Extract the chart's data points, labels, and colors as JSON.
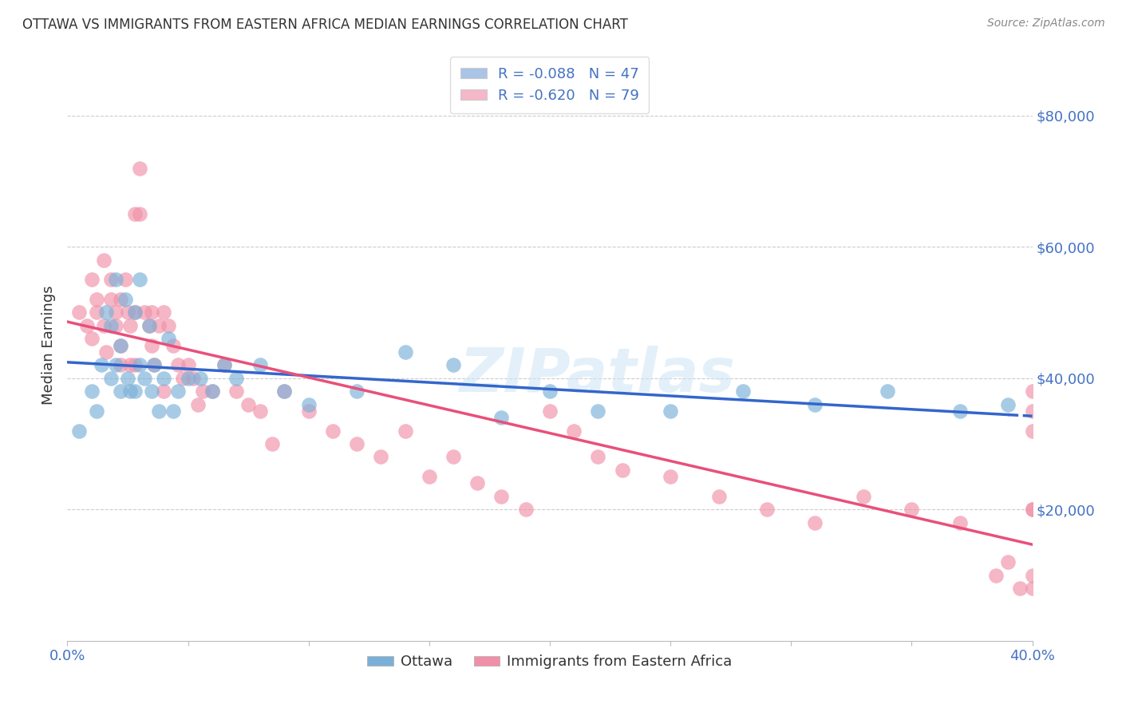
{
  "title": "OTTAWA VS IMMIGRANTS FROM EASTERN AFRICA MEDIAN EARNINGS CORRELATION CHART",
  "source": "Source: ZipAtlas.com",
  "ylabel": "Median Earnings",
  "right_ytick_labels": [
    "$80,000",
    "$60,000",
    "$40,000",
    "$20,000"
  ],
  "right_ytick_values": [
    80000,
    60000,
    40000,
    20000
  ],
  "legend_entries": [
    {
      "label": "R = -0.088   N = 47",
      "color": "#aac4e8"
    },
    {
      "label": "R = -0.620   N = 79",
      "color": "#f4b8c8"
    }
  ],
  "legend_labels_bottom": [
    "Ottawa",
    "Immigrants from Eastern Africa"
  ],
  "ottawa_color": "#7ab0d8",
  "immigrant_color": "#f090a8",
  "ottawa_line_color": "#3366cc",
  "immigrant_line_color": "#e8507a",
  "watermark": "ZIPatlas",
  "xlim": [
    0.0,
    0.4
  ],
  "ylim": [
    0,
    90000
  ],
  "ottawa_R": -0.088,
  "ottawa_N": 47,
  "immigrant_R": -0.62,
  "immigrant_N": 79,
  "ottawa_scatter_x": [
    0.005,
    0.01,
    0.012,
    0.014,
    0.016,
    0.018,
    0.018,
    0.02,
    0.02,
    0.022,
    0.022,
    0.024,
    0.025,
    0.026,
    0.028,
    0.028,
    0.03,
    0.03,
    0.032,
    0.034,
    0.035,
    0.036,
    0.038,
    0.04,
    0.042,
    0.044,
    0.046,
    0.05,
    0.055,
    0.06,
    0.065,
    0.07,
    0.08,
    0.09,
    0.1,
    0.12,
    0.14,
    0.16,
    0.18,
    0.2,
    0.22,
    0.25,
    0.28,
    0.31,
    0.34,
    0.37,
    0.39
  ],
  "ottawa_scatter_y": [
    32000,
    38000,
    35000,
    42000,
    50000,
    48000,
    40000,
    55000,
    42000,
    38000,
    45000,
    52000,
    40000,
    38000,
    50000,
    38000,
    55000,
    42000,
    40000,
    48000,
    38000,
    42000,
    35000,
    40000,
    46000,
    35000,
    38000,
    40000,
    40000,
    38000,
    42000,
    40000,
    42000,
    38000,
    36000,
    38000,
    44000,
    42000,
    34000,
    38000,
    35000,
    35000,
    38000,
    36000,
    38000,
    35000,
    36000
  ],
  "immigrant_scatter_x": [
    0.005,
    0.008,
    0.01,
    0.01,
    0.012,
    0.012,
    0.015,
    0.015,
    0.016,
    0.018,
    0.018,
    0.02,
    0.02,
    0.022,
    0.022,
    0.022,
    0.024,
    0.025,
    0.026,
    0.026,
    0.028,
    0.028,
    0.028,
    0.03,
    0.03,
    0.032,
    0.034,
    0.035,
    0.035,
    0.036,
    0.038,
    0.04,
    0.04,
    0.042,
    0.044,
    0.046,
    0.048,
    0.05,
    0.052,
    0.054,
    0.056,
    0.06,
    0.065,
    0.07,
    0.075,
    0.08,
    0.085,
    0.09,
    0.1,
    0.11,
    0.12,
    0.13,
    0.14,
    0.15,
    0.16,
    0.17,
    0.18,
    0.19,
    0.2,
    0.21,
    0.22,
    0.23,
    0.25,
    0.27,
    0.29,
    0.31,
    0.33,
    0.35,
    0.37,
    0.385,
    0.39,
    0.395,
    0.4,
    0.4,
    0.4,
    0.4,
    0.4,
    0.4,
    0.4
  ],
  "immigrant_scatter_y": [
    50000,
    48000,
    55000,
    46000,
    52000,
    50000,
    58000,
    48000,
    44000,
    55000,
    52000,
    48000,
    50000,
    52000,
    45000,
    42000,
    55000,
    50000,
    48000,
    42000,
    65000,
    50000,
    42000,
    72000,
    65000,
    50000,
    48000,
    50000,
    45000,
    42000,
    48000,
    50000,
    38000,
    48000,
    45000,
    42000,
    40000,
    42000,
    40000,
    36000,
    38000,
    38000,
    42000,
    38000,
    36000,
    35000,
    30000,
    38000,
    35000,
    32000,
    30000,
    28000,
    32000,
    25000,
    28000,
    24000,
    22000,
    20000,
    35000,
    32000,
    28000,
    26000,
    25000,
    22000,
    20000,
    18000,
    22000,
    20000,
    18000,
    10000,
    12000,
    8000,
    38000,
    20000,
    10000,
    8000,
    20000,
    35000,
    32000
  ]
}
